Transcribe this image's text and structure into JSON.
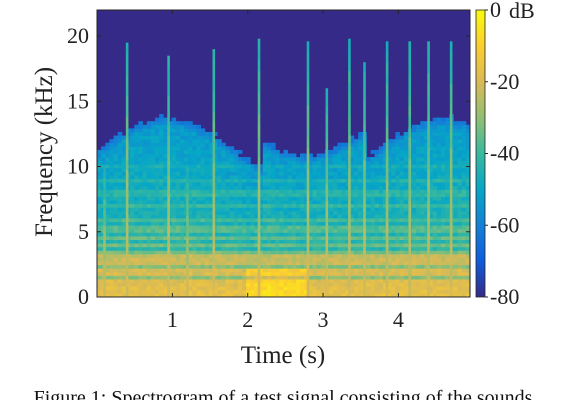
{
  "chart_data": {
    "type": "heatmap",
    "subtype": "spectrogram",
    "xlabel": "Time (s)",
    "ylabel": "Frequency (kHz)",
    "xlim": [
      0,
      4.95
    ],
    "ylim": [
      0,
      22
    ],
    "xticks": [
      1,
      2,
      3,
      4
    ],
    "yticks": [
      0,
      5,
      10,
      15,
      20
    ],
    "colorbar": {
      "label": "dB",
      "range": [
        -80,
        0
      ],
      "ticks": [
        0,
        -20,
        -40,
        -60,
        -80
      ],
      "colormap": "parula",
      "colors": [
        "#352a87",
        "#0f5cdd",
        "#1481d6",
        "#06a7c6",
        "#38b99e",
        "#92bf73",
        "#d9ba56",
        "#fcce2e",
        "#f9fb0e"
      ]
    },
    "onsets": [
      {
        "t": 0.4,
        "fmax": 19.5
      },
      {
        "t": 0.95,
        "fmax": 18.5
      },
      {
        "t": 1.55,
        "fmax": 19.0
      },
      {
        "t": 2.15,
        "fmax": 19.8
      },
      {
        "t": 2.8,
        "fmax": 19.6
      },
      {
        "t": 3.05,
        "fmax": 16.0
      },
      {
        "t": 3.35,
        "fmax": 19.8
      },
      {
        "t": 3.55,
        "fmax": 18.0
      },
      {
        "t": 3.85,
        "fmax": 19.6
      },
      {
        "t": 4.15,
        "fmax": 19.6
      },
      {
        "t": 4.4,
        "fmax": 19.6
      },
      {
        "t": 4.7,
        "fmax": 19.6
      },
      {
        "t": 0.1,
        "fmax": 10.0
      },
      {
        "t": 1.2,
        "fmax": 10.0
      }
    ],
    "harmonics_khz": [
      0.3,
      0.6,
      1.0,
      1.3,
      1.7,
      2.1,
      2.6,
      3.0,
      3.5,
      4.0,
      4.6,
      5.2,
      6.0,
      7.0,
      8.0,
      9.0,
      10.0
    ]
  },
  "caption": "Figure 1: Spectrogram of a test signal consisting of the sounds"
}
